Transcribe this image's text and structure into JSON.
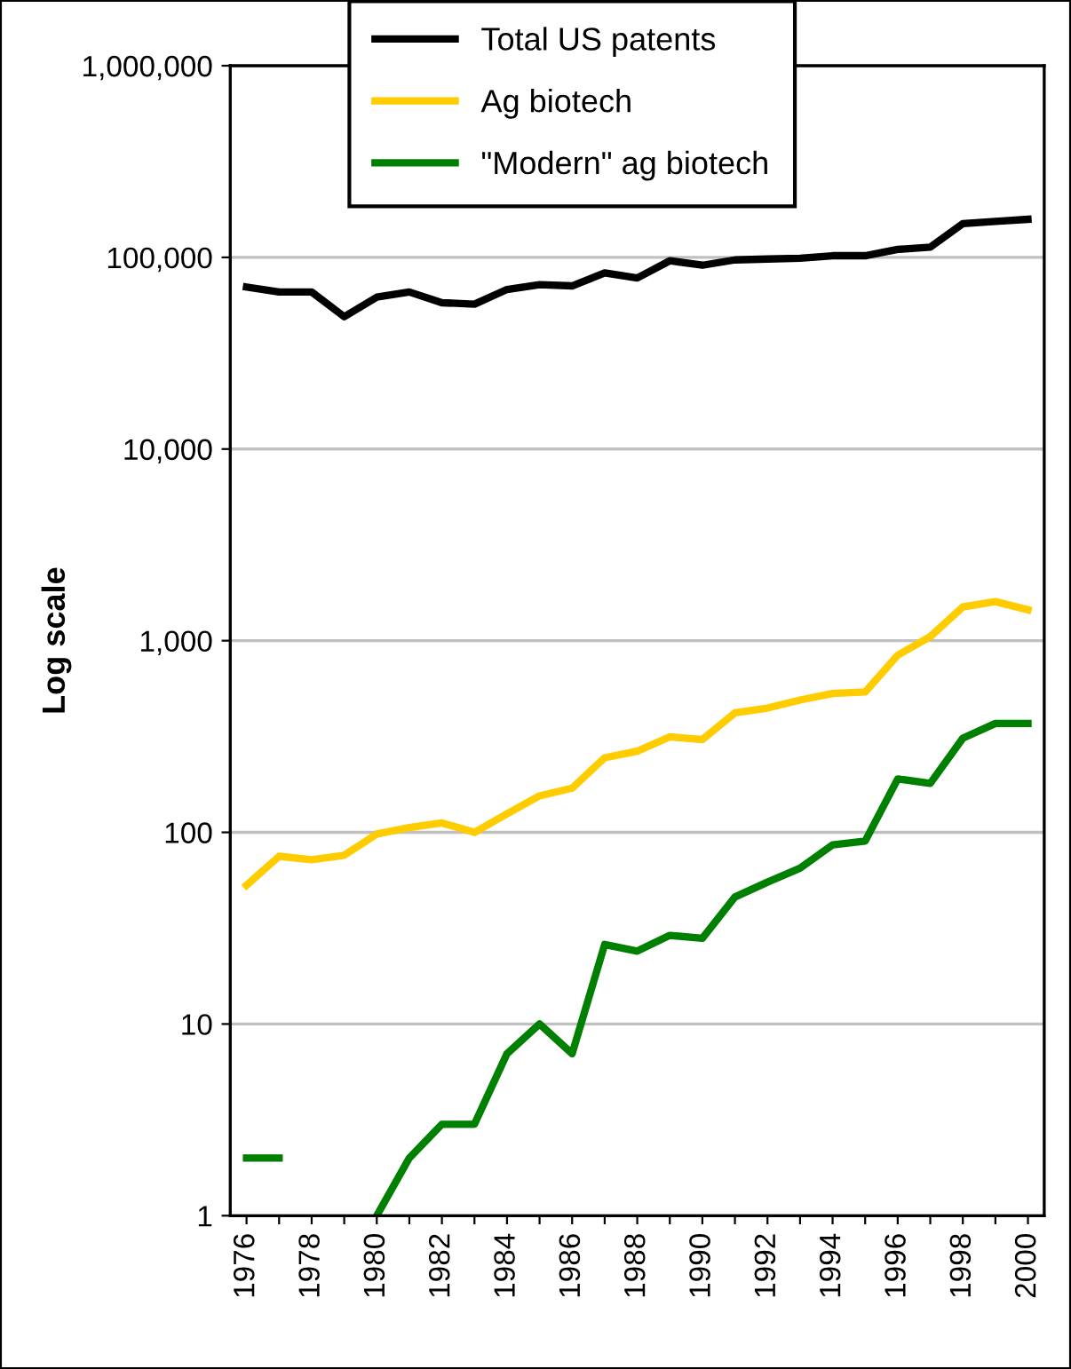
{
  "chart_data": {
    "type": "line",
    "ylabel": "Log scale",
    "log": "y",
    "categories": [
      "1976",
      null,
      "1978",
      null,
      "1980",
      null,
      "1982",
      null,
      "1984",
      null,
      "1986",
      null,
      "1988",
      null,
      "1990",
      null,
      "1992",
      null,
      "1994",
      null,
      "1996",
      null,
      "1998",
      null,
      "2000"
    ],
    "series": [
      {
        "name": "Total US patents",
        "color": "#000000",
        "values": [
          70000,
          66000,
          66000,
          49000,
          62000,
          66000,
          58000,
          57000,
          68000,
          72000,
          71000,
          83000,
          78000,
          96000,
          91000,
          97000,
          98000,
          99000,
          102000,
          102000,
          110000,
          113000,
          150000,
          154000,
          158000
        ]
      },
      {
        "name": "Ag biotech",
        "color": "#ffcc00",
        "values": [
          53,
          75,
          72,
          76,
          98,
          106,
          112,
          100,
          125,
          155,
          170,
          245,
          265,
          315,
          305,
          420,
          445,
          490,
          530,
          540,
          840,
          1050,
          1500,
          1600,
          1450
        ]
      },
      {
        "name": "\"Modern\" ag biotech",
        "color": "#008000",
        "values": [
          2,
          2,
          null,
          null,
          1,
          2,
          3,
          3,
          7,
          10,
          7,
          26,
          24,
          29,
          28,
          46,
          55,
          65,
          86,
          90,
          190,
          180,
          310,
          370,
          370
        ]
      }
    ],
    "ylim": [
      1,
      1000000
    ],
    "yticks": [
      {
        "value": 1,
        "label": "1"
      },
      {
        "value": 10,
        "label": "10"
      },
      {
        "value": 100,
        "label": "100"
      },
      {
        "value": 1000,
        "label": "1,000"
      },
      {
        "value": 10000,
        "label": "10,000"
      },
      {
        "value": 100000,
        "label": "100,000"
      },
      {
        "value": 1000000,
        "label": "1,000,000"
      }
    ],
    "grid": "y",
    "legend": "top",
    "line_style": "solid",
    "marker": "none"
  }
}
